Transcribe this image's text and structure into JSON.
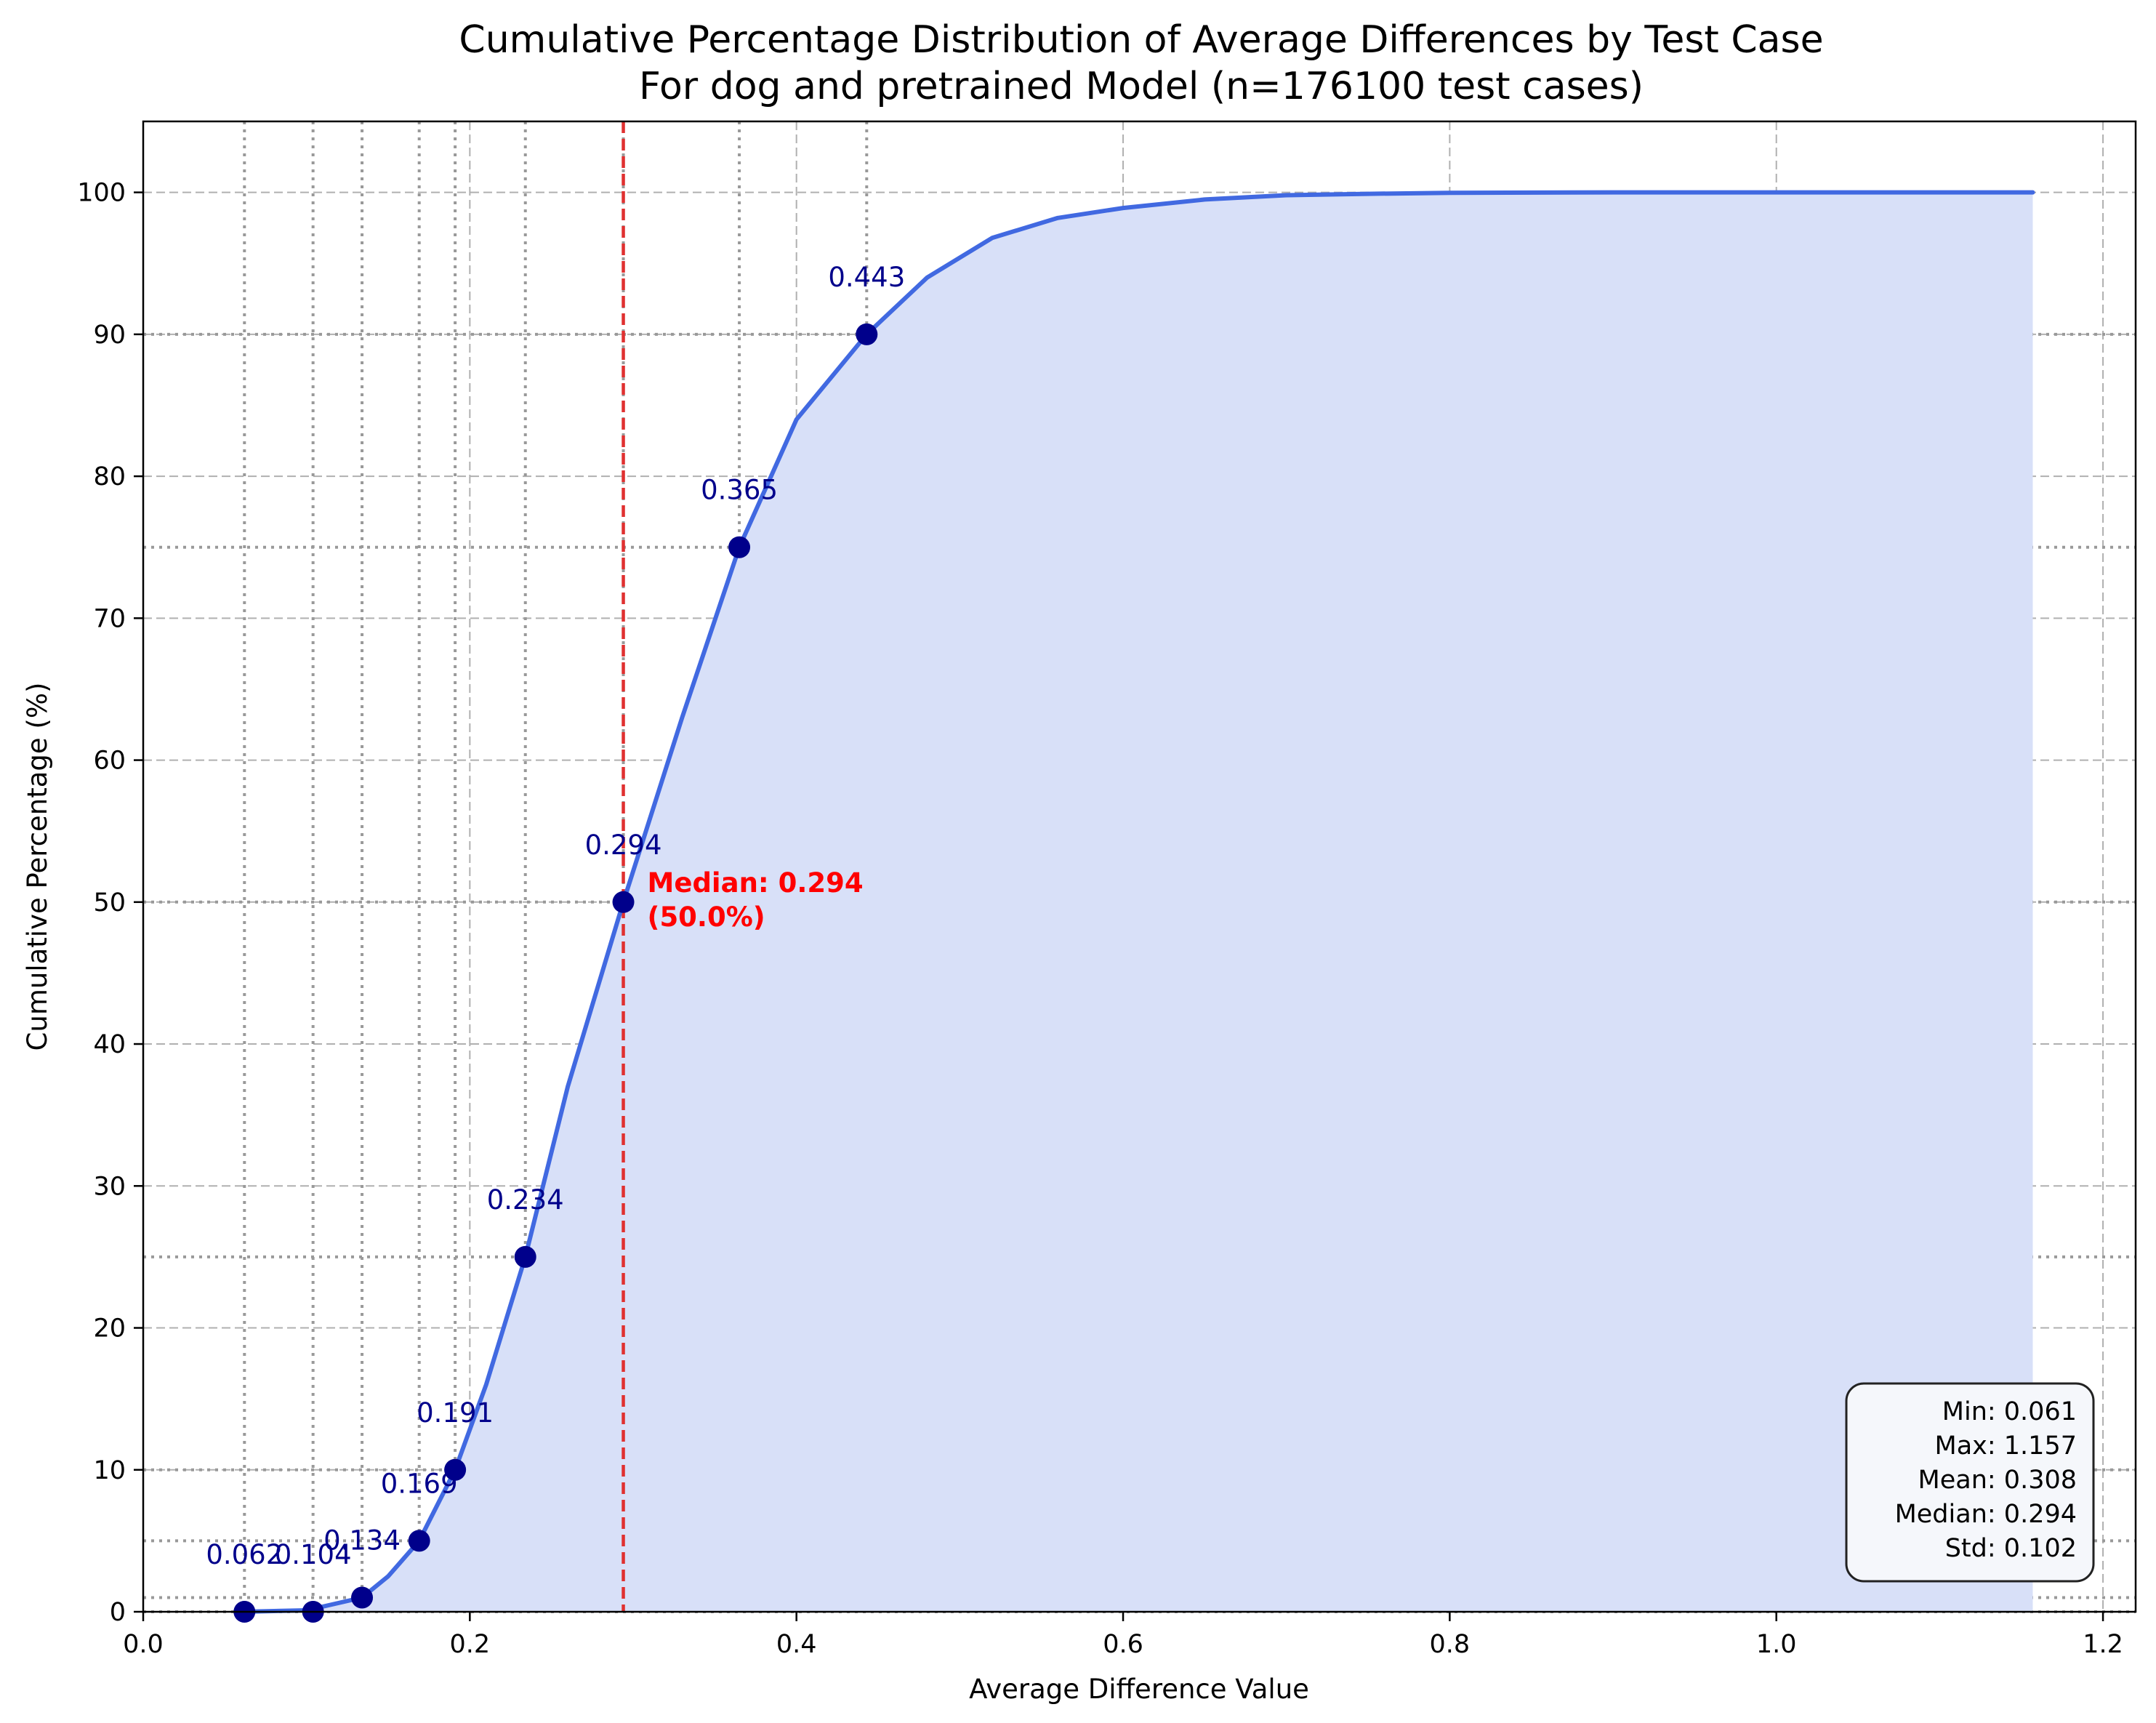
{
  "chart_data": {
    "type": "line",
    "title": "Cumulative Percentage Distribution of Average Differences by Test Case",
    "subtitle": "For dog and pretrained Model (n=176100 test cases)",
    "xlabel": "Average Difference Value",
    "ylabel": "Cumulative Percentage (%)",
    "xlim": [
      0.0,
      1.22
    ],
    "ylim": [
      0,
      105
    ],
    "x_ticks": [
      0.0,
      0.2,
      0.4,
      0.6,
      0.8,
      1.0,
      1.2
    ],
    "x_tick_labels": [
      "0.0",
      "0.2",
      "0.4",
      "0.6",
      "0.8",
      "1.0",
      "1.2"
    ],
    "y_ticks": [
      0,
      10,
      20,
      30,
      40,
      50,
      60,
      70,
      80,
      90,
      100
    ],
    "y_tick_labels": [
      "0",
      "10",
      "20",
      "30",
      "40",
      "50",
      "60",
      "70",
      "80",
      "90",
      "100"
    ],
    "grid": true,
    "curve": {
      "x": [
        0.061,
        0.1,
        0.134,
        0.15,
        0.169,
        0.191,
        0.21,
        0.234,
        0.26,
        0.294,
        0.33,
        0.365,
        0.4,
        0.443,
        0.48,
        0.52,
        0.56,
        0.6,
        0.65,
        0.7,
        0.75,
        0.8,
        0.9,
        1.0,
        1.157
      ],
      "y": [
        0,
        0.1,
        1,
        2.5,
        5,
        10,
        16,
        25,
        37,
        50,
        63,
        75,
        84,
        90,
        94,
        96.8,
        98.2,
        98.9,
        99.5,
        99.8,
        99.9,
        99.97,
        100,
        100,
        100
      ],
      "color": "#4169e1",
      "fill_color": "#d8e0f8"
    },
    "percentile_points": {
      "x": [
        0.062,
        0.104,
        0.134,
        0.169,
        0.191,
        0.234,
        0.294,
        0.365,
        0.443
      ],
      "y": [
        0,
        0,
        1,
        5,
        10,
        25,
        50,
        75,
        90
      ],
      "labels": [
        "0.062",
        "0.104",
        "0.134",
        "0.169",
        "0.191",
        "0.234",
        "0.294",
        "0.365",
        "0.443"
      ],
      "color": "#00008b"
    },
    "reference_lines_y": [
      0,
      1,
      5,
      10,
      25,
      50,
      75,
      90
    ],
    "median_line": {
      "x": 0.294,
      "color": "#e03030",
      "label": "Median: 0.294",
      "label2": "(50.0%)"
    },
    "stats_box": {
      "lines": [
        "Min: 0.061",
        "Max: 1.157",
        "Mean: 0.308",
        "Median: 0.294",
        "Std: 0.102"
      ],
      "placement": "bottom-right"
    }
  }
}
